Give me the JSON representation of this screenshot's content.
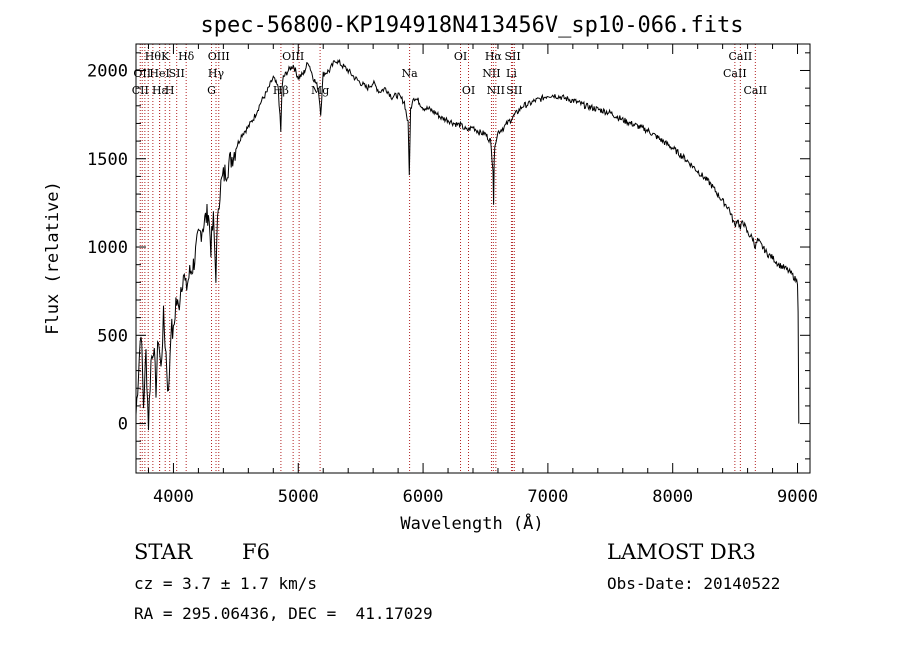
{
  "chart_data": {
    "type": "line",
    "title": "spec-56800-KP194918N413456V_sp10-066.fits",
    "xlabel": "Wavelength (Å)",
    "ylabel": "Flux (relative)",
    "xlim": [
      3700,
      9100
    ],
    "ylim": [
      -280,
      2150
    ],
    "xticks": [
      4000,
      5000,
      6000,
      7000,
      8000,
      9000
    ],
    "xtick_labels": [
      "4000",
      "5000",
      "6000",
      "7000",
      "8000",
      "9000"
    ],
    "yticks": [
      0,
      500,
      1000,
      1500,
      2000
    ],
    "ytick_labels": [
      "0",
      "500",
      "1000",
      "1500",
      "2000"
    ],
    "grid": false,
    "line_color": "#000000",
    "marker_color": "#b22222",
    "series": [
      {
        "x": [
          3700,
          3720,
          3740,
          3760,
          3780,
          3800,
          3820,
          3840,
          3860,
          3880,
          3900,
          3920,
          3940,
          3960,
          3980,
          4000,
          4020,
          4040,
          4060,
          4080,
          4100,
          4130,
          4160,
          4200,
          4240,
          4280,
          4300,
          4320,
          4340,
          4360,
          4380,
          4400,
          4450,
          4500,
          4550,
          4600,
          4650,
          4700,
          4750,
          4800,
          4840,
          4860,
          4870,
          4880,
          4920,
          4960,
          5000,
          5040,
          5080,
          5120,
          5160,
          5180,
          5200,
          5250,
          5300,
          5350,
          5400,
          5450,
          5500,
          5550,
          5600,
          5650,
          5700,
          5750,
          5800,
          5850,
          5880,
          5890,
          5900,
          5920,
          5960,
          6000,
          6050,
          6100,
          6150,
          6200,
          6250,
          6300,
          6350,
          6400,
          6450,
          6500,
          6540,
          6560,
          6565,
          6570,
          6580,
          6600,
          6650,
          6700,
          6750,
          6800,
          6850,
          6900,
          6950,
          7000,
          7050,
          7100,
          7150,
          7200,
          7300,
          7400,
          7500,
          7600,
          7700,
          7800,
          7900,
          8000,
          8100,
          8200,
          8300,
          8400,
          8450,
          8498,
          8520,
          8542,
          8560,
          8600,
          8640,
          8662,
          8680,
          8720,
          8760,
          8800,
          8850,
          8900,
          8950,
          8980,
          9000,
          9005,
          9010
        ],
        "y": [
          50,
          300,
          550,
          100,
          400,
          0,
          350,
          450,
          200,
          500,
          300,
          600,
          400,
          150,
          550,
          500,
          700,
          650,
          780,
          850,
          760,
          850,
          900,
          1050,
          1130,
          1200,
          1000,
          1150,
          850,
          1250,
          1350,
          1400,
          1480,
          1560,
          1640,
          1680,
          1740,
          1820,
          1880,
          1960,
          1900,
          1650,
          1900,
          1960,
          2000,
          2030,
          1960,
          1980,
          2050,
          1960,
          1900,
          1760,
          1980,
          2000,
          2060,
          2030,
          2000,
          1960,
          1930,
          1900,
          1930,
          1880,
          1900,
          1850,
          1860,
          1820,
          1700,
          1420,
          1780,
          1850,
          1830,
          1790,
          1780,
          1760,
          1730,
          1720,
          1700,
          1690,
          1660,
          1680,
          1650,
          1640,
          1600,
          1450,
          1250,
          1500,
          1600,
          1650,
          1680,
          1720,
          1760,
          1800,
          1810,
          1830,
          1840,
          1860,
          1860,
          1850,
          1840,
          1830,
          1800,
          1780,
          1760,
          1720,
          1690,
          1660,
          1610,
          1560,
          1500,
          1430,
          1360,
          1260,
          1220,
          1120,
          1160,
          1100,
          1150,
          1080,
          1050,
          1000,
          1040,
          1000,
          960,
          940,
          900,
          880,
          850,
          820,
          800,
          650,
          0
        ]
      }
    ],
    "line_markers": [
      {
        "x": 3734,
        "label": "CII",
        "row": 2
      },
      {
        "x": 3750,
        "label": "OII",
        "row": 1
      },
      {
        "x": 3771,
        "label": "",
        "row": 0
      },
      {
        "x": 3798,
        "label": "",
        "row": 0
      },
      {
        "x": 3835,
        "label": "Hθ",
        "row": 0
      },
      {
        "x": 3889,
        "label": "Hε",
        "row": 2
      },
      {
        "x": 3889,
        "label": "HeI",
        "row": 1
      },
      {
        "x": 3934,
        "label": "K",
        "row": 0
      },
      {
        "x": 3970,
        "label": "H",
        "row": 2
      },
      {
        "x": 4026,
        "label": "SII",
        "row": 1
      },
      {
        "x": 4102,
        "label": "Hδ",
        "row": 0
      },
      {
        "x": 4305,
        "label": "G",
        "row": 2
      },
      {
        "x": 4341,
        "label": "Hγ",
        "row": 1
      },
      {
        "x": 4363,
        "label": "OIII",
        "row": 0
      },
      {
        "x": 4861,
        "label": "Hβ",
        "row": 2
      },
      {
        "x": 4959,
        "label": "OIII",
        "row": 0
      },
      {
        "x": 5007,
        "label": "",
        "row": 0
      },
      {
        "x": 5175,
        "label": "Mg",
        "row": 2
      },
      {
        "x": 5892,
        "label": "Na",
        "row": 1
      },
      {
        "x": 6300,
        "label": "OI",
        "row": 0
      },
      {
        "x": 6364,
        "label": "OI",
        "row": 2
      },
      {
        "x": 6548,
        "label": "NII",
        "row": 1
      },
      {
        "x": 6563,
        "label": "Hα",
        "row": 0
      },
      {
        "x": 6583,
        "label": "NII",
        "row": 2
      },
      {
        "x": 6708,
        "label": "Li",
        "row": 1
      },
      {
        "x": 6717,
        "label": "SII",
        "row": 0
      },
      {
        "x": 6731,
        "label": "SII",
        "row": 2
      },
      {
        "x": 8498,
        "label": "CaII",
        "row": 1
      },
      {
        "x": 8542,
        "label": "CaII",
        "row": 0
      },
      {
        "x": 8662,
        "label": "CaII",
        "row": 2
      }
    ]
  },
  "info": {
    "object_class": "STAR",
    "subclass": "F6",
    "survey": "LAMOST DR3",
    "cz": "cz = 3.7 ± 1.7 km/s",
    "obs_date": "Obs-Date: 20140522",
    "coords": "RA = 295.06436, DEC =  41.17029"
  }
}
